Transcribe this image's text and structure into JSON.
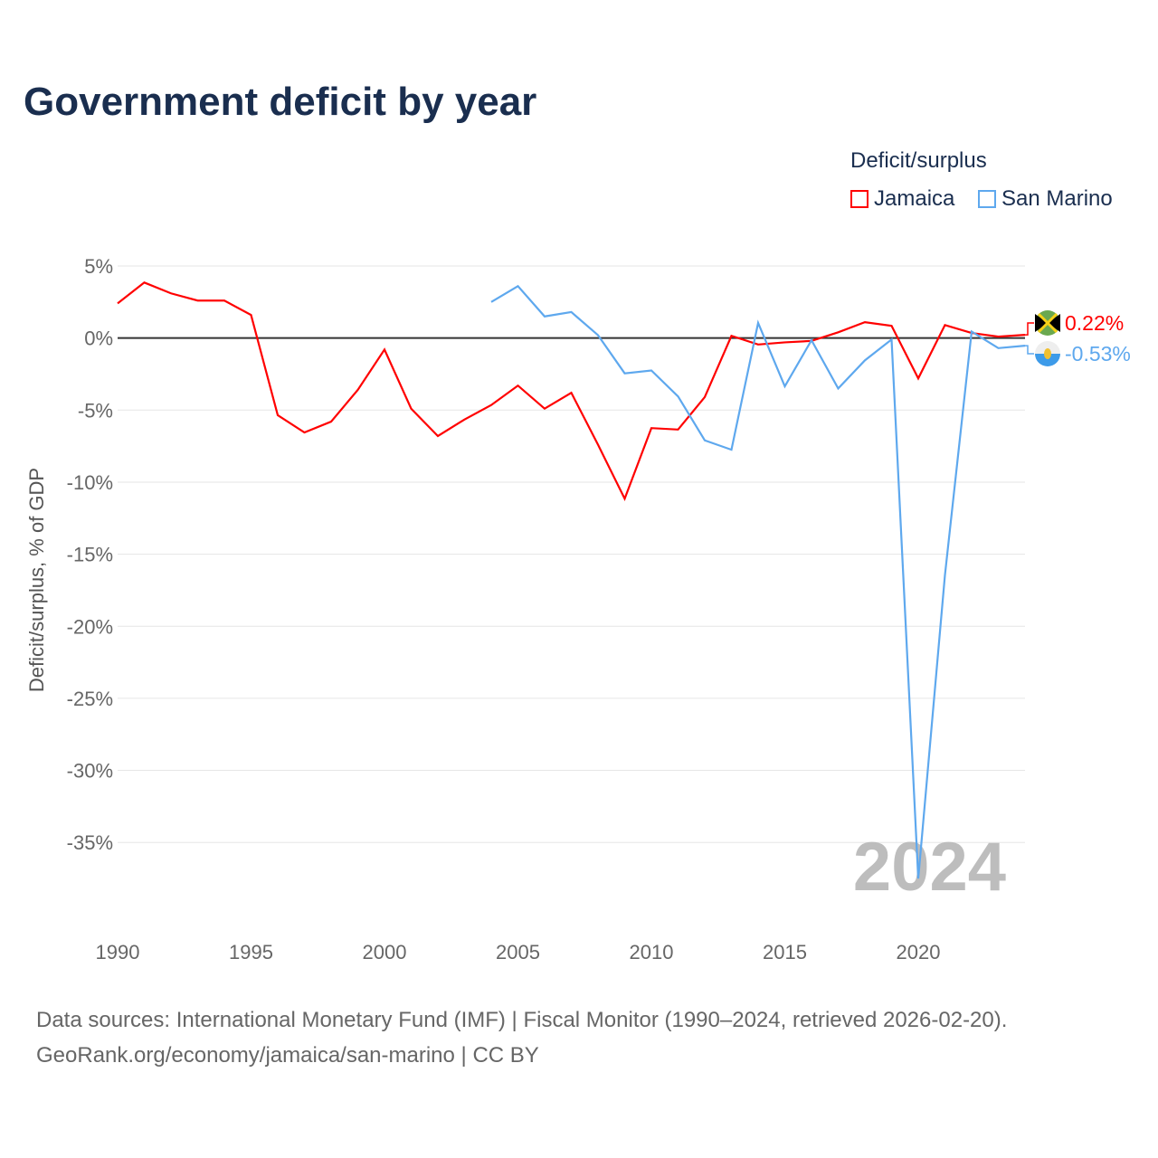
{
  "chart_data": {
    "type": "line",
    "title": "Government deficit by year",
    "ylabel": "Deficit/surplus, % of GDP",
    "xlabel": "",
    "xlim": [
      1990,
      2024
    ],
    "ylim": [
      -40,
      5
    ],
    "x_ticks": [
      1990,
      1995,
      2000,
      2005,
      2010,
      2015,
      2020
    ],
    "x_tick_labels": [
      "1990",
      "1995",
      "2000",
      "2005",
      "2010",
      "2015",
      "2020"
    ],
    "y_ticks": [
      5,
      0,
      -5,
      -10,
      -15,
      -20,
      -25,
      -30,
      -35
    ],
    "y_tick_labels": [
      "5%",
      "0%",
      "-5%",
      "-10%",
      "-15%",
      "-20%",
      "-25%",
      "-30%",
      "-35%"
    ],
    "grid": true,
    "legend_title": "Deficit/surplus",
    "legend_position": "top-right",
    "year_watermark": "2024",
    "series": [
      {
        "name": "Jamaica",
        "color": "#ff0000",
        "end_label": "0.22%",
        "x": [
          1990,
          1991,
          1992,
          1993,
          1994,
          1995,
          1996,
          1997,
          1998,
          1999,
          2000,
          2001,
          2002,
          2003,
          2004,
          2005,
          2006,
          2007,
          2008,
          2009,
          2010,
          2011,
          2012,
          2013,
          2014,
          2015,
          2016,
          2017,
          2018,
          2019,
          2020,
          2021,
          2022,
          2023,
          2024
        ],
        "values": [
          2.4,
          3.85,
          3.1,
          2.6,
          2.6,
          1.6,
          -5.35,
          -6.55,
          -5.8,
          -3.6,
          -0.8,
          -4.9,
          -6.8,
          -5.65,
          -4.65,
          -3.3,
          -4.9,
          -3.8,
          -7.4,
          -11.15,
          -6.25,
          -6.35,
          -4.1,
          0.15,
          -0.45,
          -0.3,
          -0.2,
          0.4,
          1.1,
          0.85,
          -2.8,
          0.9,
          0.35,
          0.1,
          0.22
        ]
      },
      {
        "name": "San Marino",
        "color": "#5ea8ee",
        "end_label": "-0.53%",
        "x": [
          2004,
          2005,
          2006,
          2007,
          2008,
          2009,
          2010,
          2011,
          2012,
          2013,
          2014,
          2015,
          2016,
          2017,
          2018,
          2019,
          2020,
          2021,
          2022,
          2023,
          2024
        ],
        "values": [
          2.5,
          3.6,
          1.5,
          1.8,
          0.2,
          -2.45,
          -2.25,
          -4.05,
          -7.1,
          -7.75,
          1.05,
          -3.35,
          -0.15,
          -3.5,
          -1.55,
          -0.1,
          -37.5,
          -16.45,
          0.45,
          -0.7,
          -0.53
        ]
      }
    ],
    "source_line1": "Data sources: International Monetary Fund (IMF) | Fiscal Monitor (1990–2024, retrieved 2026-02-20).",
    "source_line2": "GeoRank.org/economy/jamaica/san-marino | CC BY"
  }
}
